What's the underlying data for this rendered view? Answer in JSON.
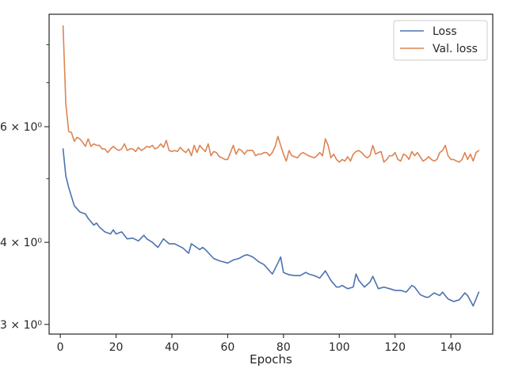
{
  "chart_data": {
    "type": "line",
    "title": "",
    "xlabel": "Epochs",
    "ylabel": "",
    "x_scale": "linear",
    "y_scale": "log",
    "xlim": [
      -4,
      155
    ],
    "ylim": [
      2.9,
      8.9
    ],
    "x_ticks": [
      0,
      20,
      40,
      60,
      80,
      100,
      120,
      140
    ],
    "x_tick_labels": [
      "0",
      "20",
      "40",
      "60",
      "80",
      "100",
      "120",
      "140"
    ],
    "y_ticks": [
      3,
      4,
      6
    ],
    "y_tick_labels": [
      "3 × 10⁰",
      "4 × 10⁰",
      "6 × 10⁰"
    ],
    "y_minor_ticks": [
      5,
      7,
      8
    ],
    "grid": false,
    "legend": {
      "position": "top-right",
      "entries": [
        "Loss",
        "Val. loss"
      ]
    },
    "series": [
      {
        "name": "Loss",
        "color": "#4c72b0",
        "x": [
          1,
          2,
          3,
          5,
          7,
          9,
          10,
          12,
          13,
          14,
          16,
          18,
          19,
          20,
          22,
          24,
          26,
          28,
          30,
          31,
          33,
          35,
          37,
          39,
          41,
          44,
          46,
          47,
          50,
          51,
          52,
          55,
          57,
          60,
          62,
          64,
          66,
          67,
          69,
          71,
          73,
          75,
          76,
          78,
          79,
          80,
          82,
          84,
          86,
          88,
          89,
          91,
          93,
          95,
          97,
          99,
          100,
          101,
          103,
          105,
          106,
          107,
          109,
          111,
          112,
          114,
          116,
          118,
          120,
          122,
          124,
          126,
          127,
          129,
          131,
          132,
          134,
          136,
          137,
          139,
          141,
          143,
          145,
          146,
          148,
          150
        ],
        "values": [
          5.55,
          5.05,
          4.85,
          4.55,
          4.45,
          4.42,
          4.35,
          4.25,
          4.28,
          4.22,
          4.15,
          4.12,
          4.18,
          4.12,
          4.15,
          4.05,
          4.06,
          4.02,
          4.1,
          4.05,
          4.0,
          3.93,
          4.05,
          3.98,
          3.98,
          3.92,
          3.85,
          3.98,
          3.9,
          3.93,
          3.9,
          3.78,
          3.75,
          3.72,
          3.76,
          3.78,
          3.82,
          3.83,
          3.8,
          3.74,
          3.7,
          3.62,
          3.58,
          3.72,
          3.8,
          3.6,
          3.57,
          3.56,
          3.56,
          3.6,
          3.58,
          3.56,
          3.53,
          3.62,
          3.5,
          3.42,
          3.42,
          3.44,
          3.4,
          3.42,
          3.58,
          3.5,
          3.42,
          3.48,
          3.55,
          3.4,
          3.42,
          3.4,
          3.38,
          3.38,
          3.36,
          3.44,
          3.42,
          3.33,
          3.3,
          3.3,
          3.35,
          3.32,
          3.36,
          3.28,
          3.25,
          3.27,
          3.35,
          3.32,
          3.2,
          3.36
        ]
      },
      {
        "name": "Val. loss",
        "color": "#dd8452",
        "x": [
          1,
          2,
          3,
          4,
          5,
          6,
          7,
          8,
          9,
          10,
          11,
          12,
          13,
          14,
          15,
          16,
          17,
          18,
          19,
          20,
          21,
          22,
          23,
          24,
          25,
          26,
          27,
          28,
          29,
          30,
          31,
          32,
          33,
          34,
          35,
          36,
          37,
          38,
          39,
          40,
          41,
          42,
          43,
          44,
          45,
          46,
          47,
          48,
          49,
          50,
          51,
          52,
          53,
          54,
          55,
          56,
          57,
          58,
          59,
          60,
          61,
          62,
          63,
          64,
          65,
          66,
          67,
          68,
          69,
          70,
          71,
          72,
          73,
          74,
          75,
          76,
          77,
          78,
          79,
          80,
          81,
          82,
          83,
          84,
          85,
          86,
          87,
          88,
          89,
          90,
          91,
          92,
          93,
          94,
          95,
          96,
          97,
          98,
          99,
          100,
          101,
          102,
          103,
          104,
          105,
          106,
          107,
          108,
          109,
          110,
          111,
          112,
          113,
          114,
          115,
          116,
          117,
          118,
          119,
          120,
          121,
          122,
          123,
          124,
          125,
          126,
          127,
          128,
          129,
          130,
          131,
          132,
          133,
          134,
          135,
          136,
          137,
          138,
          139,
          140,
          141,
          142,
          143,
          144,
          145,
          146,
          147,
          148,
          149,
          150
        ],
        "values": [
          8.55,
          6.5,
          5.9,
          5.88,
          5.7,
          5.78,
          5.75,
          5.68,
          5.6,
          5.75,
          5.6,
          5.65,
          5.62,
          5.62,
          5.55,
          5.55,
          5.48,
          5.55,
          5.6,
          5.55,
          5.52,
          5.55,
          5.65,
          5.52,
          5.55,
          5.55,
          5.5,
          5.58,
          5.52,
          5.55,
          5.6,
          5.58,
          5.62,
          5.55,
          5.58,
          5.65,
          5.58,
          5.72,
          5.52,
          5.5,
          5.52,
          5.5,
          5.58,
          5.52,
          5.48,
          5.55,
          5.42,
          5.62,
          5.48,
          5.62,
          5.55,
          5.5,
          5.65,
          5.42,
          5.5,
          5.48,
          5.4,
          5.38,
          5.35,
          5.35,
          5.48,
          5.62,
          5.45,
          5.55,
          5.52,
          5.45,
          5.52,
          5.52,
          5.52,
          5.42,
          5.45,
          5.45,
          5.48,
          5.48,
          5.42,
          5.48,
          5.6,
          5.8,
          5.62,
          5.45,
          5.32,
          5.52,
          5.42,
          5.4,
          5.38,
          5.45,
          5.48,
          5.45,
          5.42,
          5.4,
          5.38,
          5.42,
          5.48,
          5.42,
          5.75,
          5.62,
          5.38,
          5.45,
          5.35,
          5.3,
          5.35,
          5.32,
          5.4,
          5.32,
          5.45,
          5.5,
          5.52,
          5.48,
          5.42,
          5.38,
          5.42,
          5.62,
          5.45,
          5.48,
          5.5,
          5.3,
          5.35,
          5.42,
          5.42,
          5.48,
          5.35,
          5.32,
          5.45,
          5.42,
          5.35,
          5.5,
          5.42,
          5.48,
          5.4,
          5.32,
          5.35,
          5.4,
          5.35,
          5.32,
          5.35,
          5.48,
          5.52,
          5.62,
          5.42,
          5.35,
          5.35,
          5.32,
          5.3,
          5.35,
          5.48,
          5.35,
          5.45,
          5.32,
          5.48,
          5.52
        ]
      }
    ]
  }
}
